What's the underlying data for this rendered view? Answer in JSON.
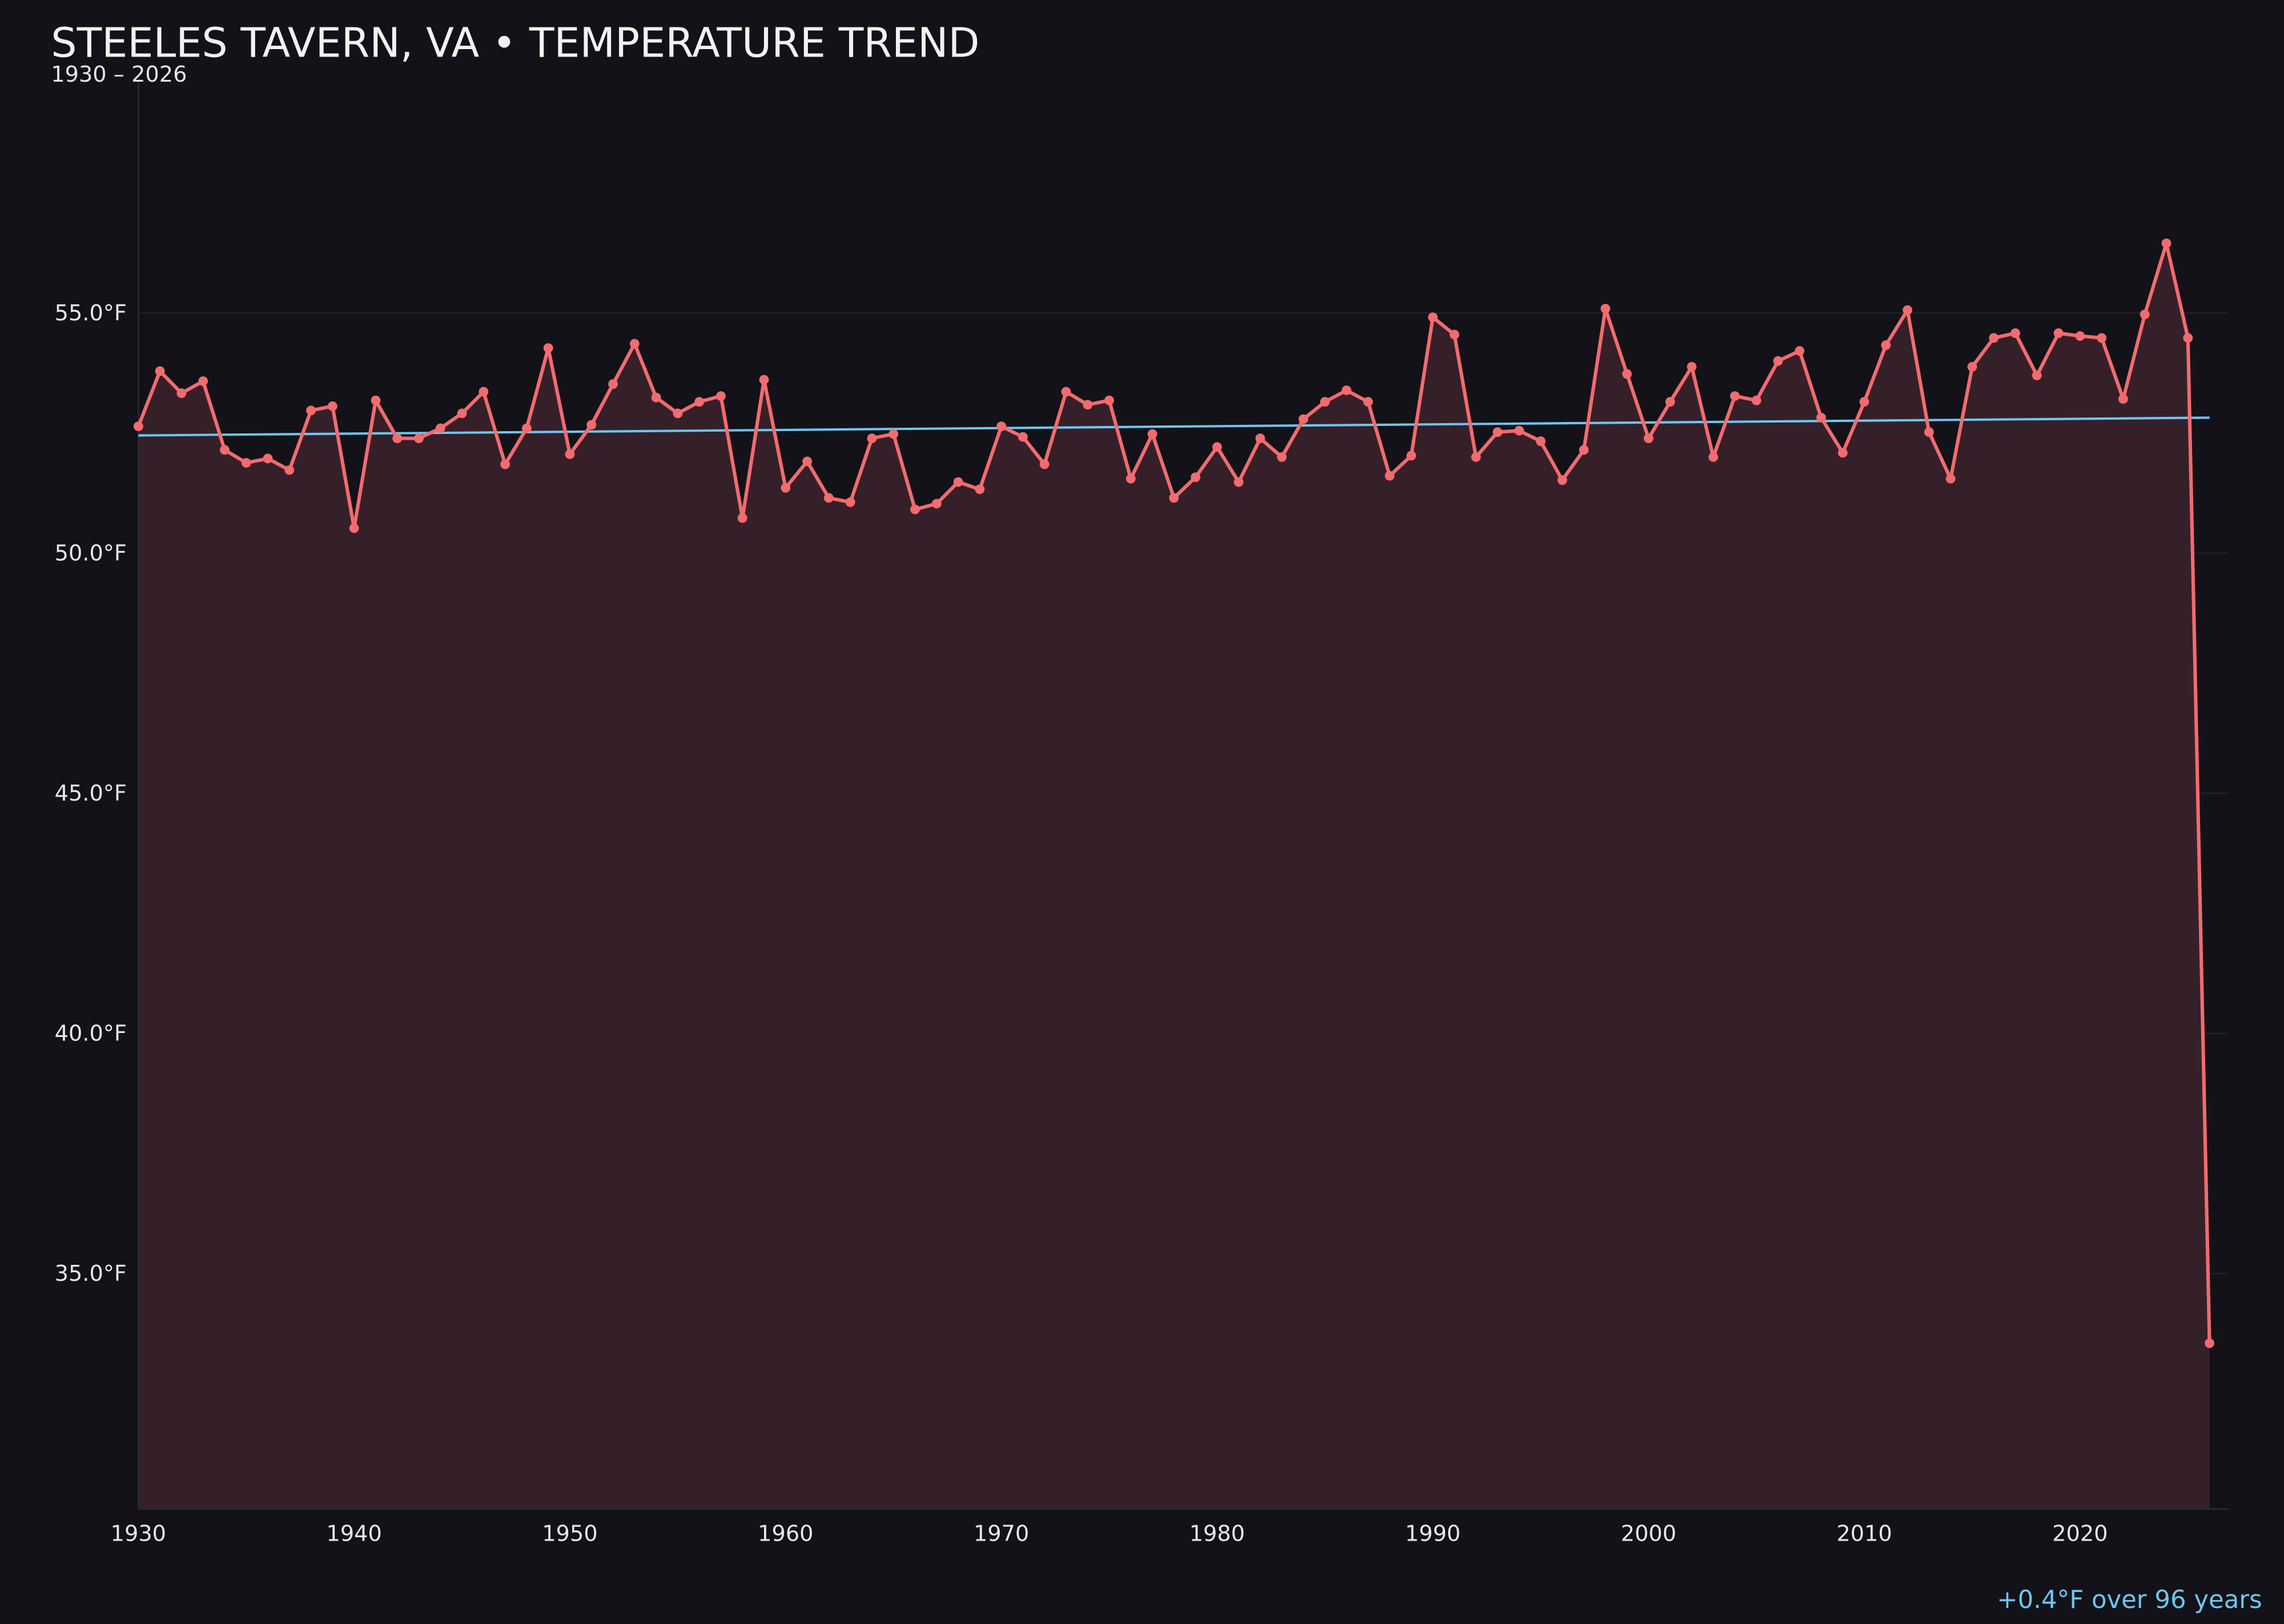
{
  "header": {
    "title": "STEELES TAVERN, VA • TEMPERATURE TREND",
    "subtitle": "1930 – 2026"
  },
  "footer": {
    "trend_note": "+0.4°F over 96 years"
  },
  "colors": {
    "background": "#131218",
    "line": "#f26b6e",
    "area_fill": "#35202a",
    "trend": "#6ec6f0",
    "grid": "#261f25"
  },
  "chart_data": {
    "type": "line",
    "title": "STEELES TAVERN, VA • TEMPERATURE TREND",
    "subtitle": "1930 – 2026",
    "xlabel": "",
    "ylabel": "",
    "xlim": [
      1930,
      2027
    ],
    "ylim": [
      30.1,
      60.0
    ],
    "grid": true,
    "x_ticks": [
      1930,
      1940,
      1950,
      1960,
      1970,
      1980,
      1990,
      2000,
      2010,
      2020
    ],
    "x_tick_labels": [
      "1930",
      "1940",
      "1950",
      "1960",
      "1970",
      "1980",
      "1990",
      "2000",
      "2010",
      "2020"
    ],
    "y_ticks": [
      35,
      40,
      45,
      50,
      55
    ],
    "y_tick_labels": [
      "35.0°F",
      "40.0°F",
      "45.0°F",
      "50.0°F",
      "55.0°F"
    ],
    "x": [
      1930,
      1931,
      1932,
      1933,
      1934,
      1935,
      1936,
      1937,
      1938,
      1939,
      1940,
      1941,
      1942,
      1943,
      1944,
      1945,
      1946,
      1947,
      1948,
      1949,
      1950,
      1951,
      1952,
      1953,
      1954,
      1955,
      1956,
      1957,
      1958,
      1959,
      1960,
      1961,
      1962,
      1963,
      1964,
      1965,
      1966,
      1967,
      1968,
      1969,
      1970,
      1971,
      1972,
      1973,
      1974,
      1975,
      1976,
      1977,
      1978,
      1979,
      1980,
      1981,
      1982,
      1983,
      1984,
      1985,
      1986,
      1987,
      1988,
      1989,
      1990,
      1991,
      1992,
      1993,
      1994,
      1995,
      1996,
      1997,
      1998,
      1999,
      2000,
      2001,
      2002,
      2003,
      2004,
      2005,
      2006,
      2007,
      2008,
      2009,
      2010,
      2011,
      2012,
      2013,
      2014,
      2015,
      2016,
      2017,
      2018,
      2019,
      2020,
      2021,
      2022,
      2023,
      2024,
      2025,
      2026
    ],
    "series": [
      {
        "values": [
          52.64,
          53.79,
          53.33,
          53.58,
          52.15,
          51.88,
          51.97,
          51.73,
          52.97,
          53.06,
          50.52,
          53.18,
          52.39,
          52.39,
          52.6,
          52.91,
          53.36,
          51.85,
          52.6,
          54.27,
          52.06,
          52.67,
          53.52,
          54.36,
          53.24,
          52.91,
          53.15,
          53.27,
          50.73,
          53.61,
          51.36,
          51.91,
          51.15,
          51.06,
          52.39,
          52.48,
          50.91,
          51.03,
          51.48,
          51.33,
          52.64,
          52.42,
          51.85,
          53.36,
          53.09,
          53.18,
          51.55,
          52.48,
          51.15,
          51.58,
          52.21,
          51.48,
          52.39,
          52.0,
          52.79,
          53.15,
          53.39,
          53.15,
          51.61,
          52.03,
          54.91,
          54.55,
          52.0,
          52.52,
          52.55,
          52.33,
          51.52,
          52.15,
          55.09,
          53.73,
          52.39,
          53.15,
          53.88,
          52.0,
          53.27,
          53.18,
          54.0,
          54.21,
          52.82,
          52.09,
          53.15,
          54.33,
          55.06,
          52.52,
          51.55,
          53.88,
          54.48,
          54.58,
          53.7,
          54.58,
          54.52,
          54.48,
          53.21,
          54.97,
          56.45,
          54.48,
          33.55
        ]
      }
    ],
    "trendline": {
      "x": [
        1930,
        2026
      ],
      "y": [
        52.45,
        52.82
      ]
    }
  }
}
